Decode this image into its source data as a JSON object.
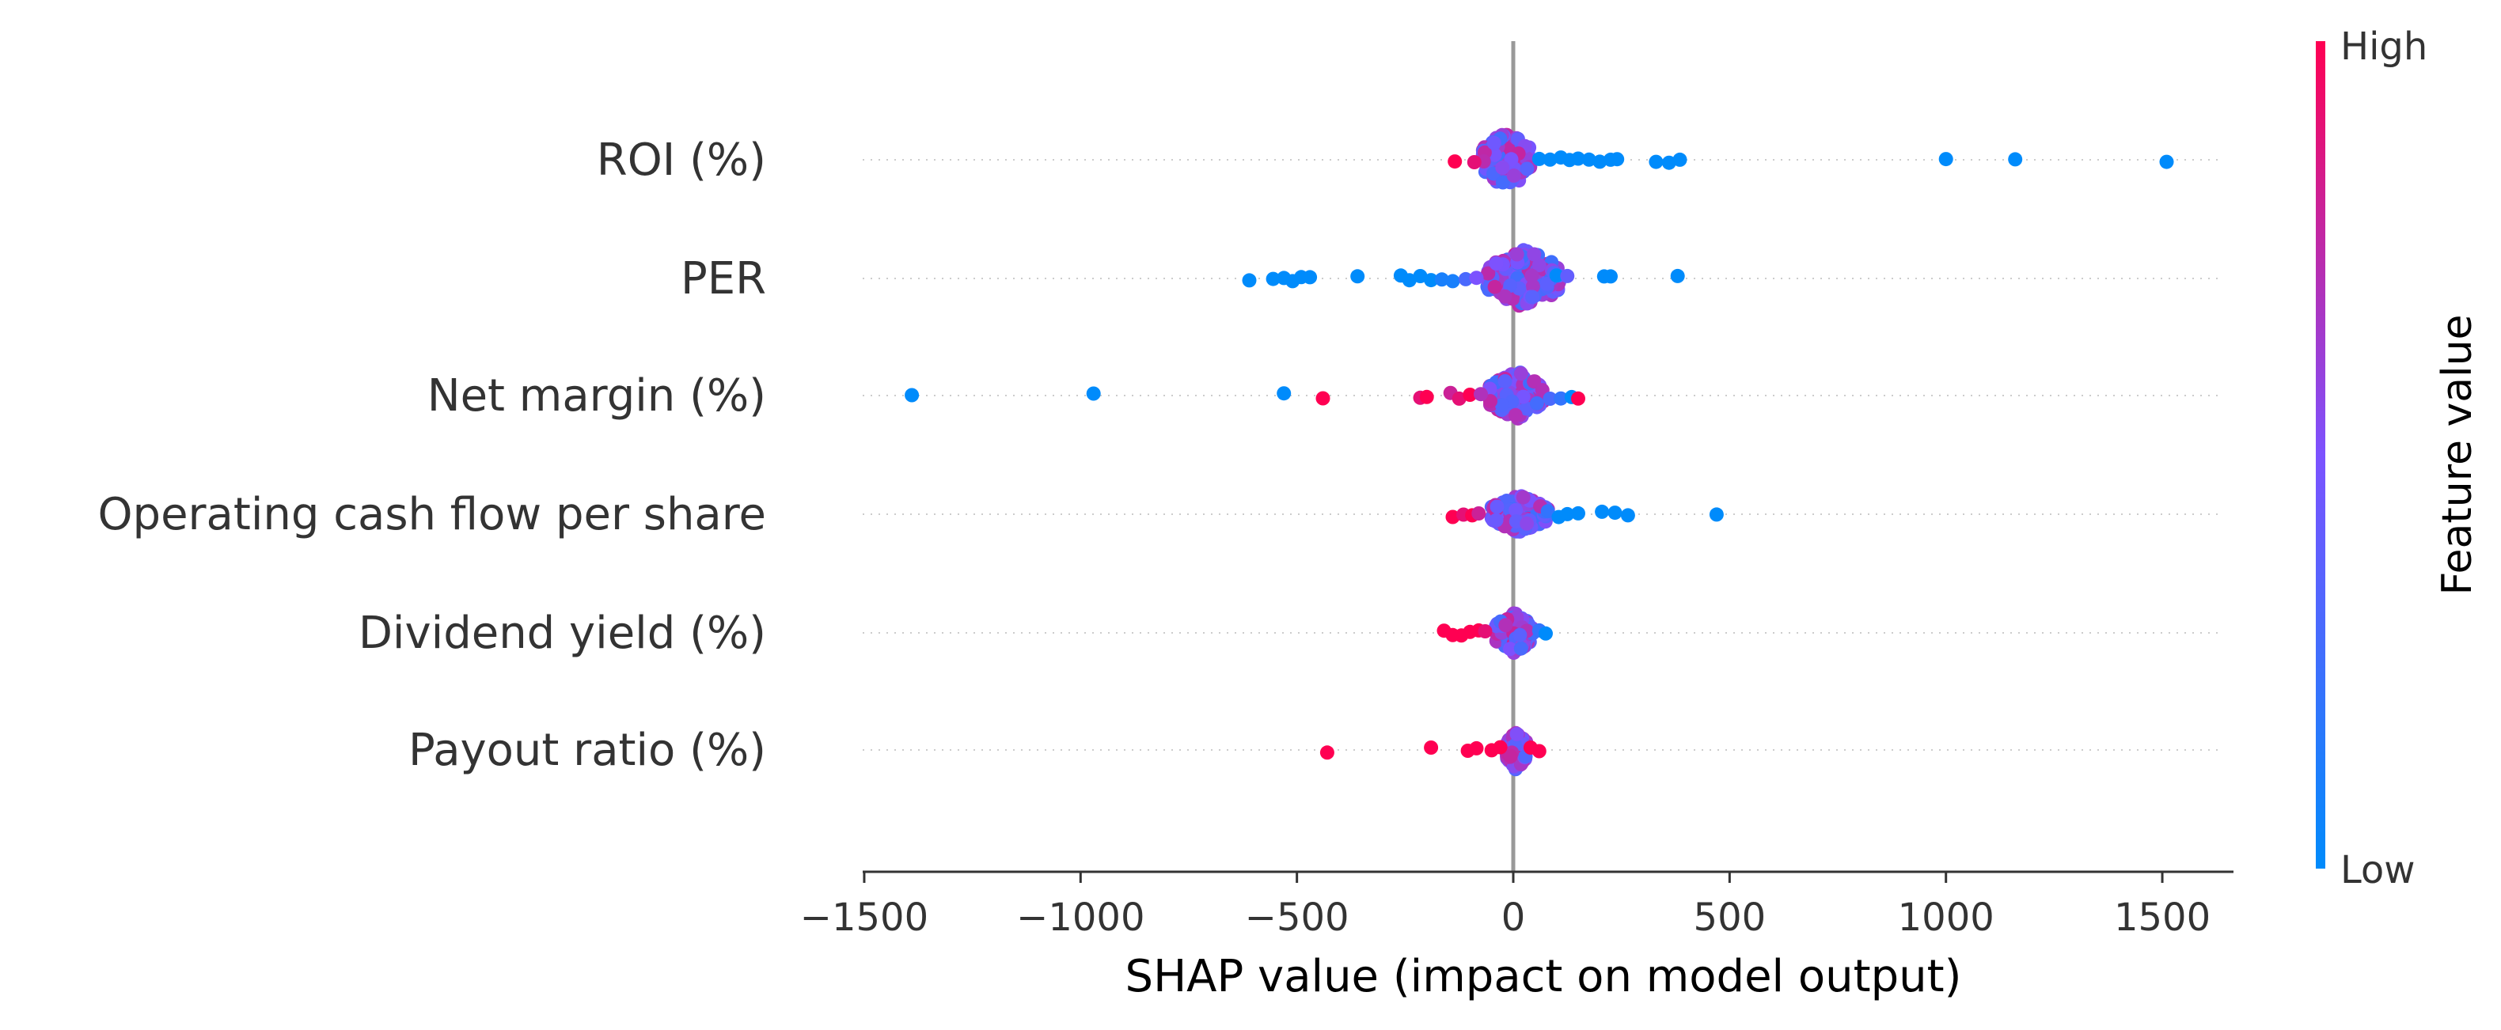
{
  "chart_data": {
    "type": "scatter",
    "subtype": "shap-beeswarm",
    "xlabel": "SHAP value (impact on model output)",
    "xlim": [
      -1600,
      1650
    ],
    "x_ticks": [
      -1500,
      -1000,
      -500,
      0,
      500,
      1000,
      1500
    ],
    "x_tick_labels": [
      "−1500",
      "−1000",
      "−500",
      "0",
      "500",
      "1000",
      "1500"
    ],
    "colorbar": {
      "label": "Feature value",
      "high_label": "High",
      "low_label": "Low",
      "high_color": "#ff0052",
      "low_color": "#008bfb"
    },
    "features": [
      {
        "name": "ROI (%)",
        "outliers": [
          {
            "x": -135,
            "v": 1
          },
          {
            "x": -90,
            "v": 0.9
          },
          {
            "x": 60,
            "v": 0
          },
          {
            "x": 85,
            "v": 0
          },
          {
            "x": 110,
            "v": 0
          },
          {
            "x": 130,
            "v": 0
          },
          {
            "x": 150,
            "v": 0
          },
          {
            "x": 175,
            "v": 0
          },
          {
            "x": 200,
            "v": 0
          },
          {
            "x": 225,
            "v": 0
          },
          {
            "x": 240,
            "v": 0
          },
          {
            "x": 330,
            "v": 0
          },
          {
            "x": 360,
            "v": 0
          },
          {
            "x": 385,
            "v": 0
          },
          {
            "x": 1000,
            "v": 0
          },
          {
            "x": 1160,
            "v": 0
          },
          {
            "x": 1510,
            "v": 0
          }
        ]
      },
      {
        "name": "PER",
        "outliers": [
          {
            "x": -610,
            "v": 0
          },
          {
            "x": -555,
            "v": 0
          },
          {
            "x": -530,
            "v": 0
          },
          {
            "x": -510,
            "v": 0
          },
          {
            "x": -490,
            "v": 0
          },
          {
            "x": -470,
            "v": 0
          },
          {
            "x": -360,
            "v": 0
          },
          {
            "x": -260,
            "v": 0
          },
          {
            "x": -240,
            "v": 0
          },
          {
            "x": -215,
            "v": 0
          },
          {
            "x": -190,
            "v": 0
          },
          {
            "x": -165,
            "v": 0.1
          },
          {
            "x": -140,
            "v": 0.1
          },
          {
            "x": -110,
            "v": 0.3
          },
          {
            "x": -85,
            "v": 0.5
          },
          {
            "x": 100,
            "v": 0
          },
          {
            "x": 125,
            "v": 0.4
          },
          {
            "x": 210,
            "v": 0
          },
          {
            "x": 225,
            "v": 0
          },
          {
            "x": 380,
            "v": 0
          }
        ]
      },
      {
        "name": "Net margin (%)",
        "outliers": [
          {
            "x": -1390,
            "v": 0
          },
          {
            "x": -970,
            "v": 0
          },
          {
            "x": -530,
            "v": 0
          },
          {
            "x": -440,
            "v": 1
          },
          {
            "x": -215,
            "v": 0.9
          },
          {
            "x": -200,
            "v": 1
          },
          {
            "x": -145,
            "v": 0.8
          },
          {
            "x": -125,
            "v": 0.9
          },
          {
            "x": -100,
            "v": 1
          },
          {
            "x": -75,
            "v": 0.7
          },
          {
            "x": 85,
            "v": 0.3
          },
          {
            "x": 110,
            "v": 0.2
          },
          {
            "x": 135,
            "v": 0
          },
          {
            "x": 150,
            "v": 1
          }
        ]
      },
      {
        "name": "Operating cash flow per share",
        "outliers": [
          {
            "x": -140,
            "v": 1
          },
          {
            "x": -115,
            "v": 0.9
          },
          {
            "x": -95,
            "v": 1
          },
          {
            "x": -80,
            "v": 0.8
          },
          {
            "x": 80,
            "v": 0.2
          },
          {
            "x": 105,
            "v": 0
          },
          {
            "x": 125,
            "v": 0
          },
          {
            "x": 150,
            "v": 0
          },
          {
            "x": 205,
            "v": 0
          },
          {
            "x": 235,
            "v": 0
          },
          {
            "x": 265,
            "v": 0
          },
          {
            "x": 470,
            "v": 0
          }
        ]
      },
      {
        "name": "Dividend yield (%)",
        "outliers": [
          {
            "x": -160,
            "v": 1
          },
          {
            "x": -140,
            "v": 1
          },
          {
            "x": -120,
            "v": 1
          },
          {
            "x": -100,
            "v": 1
          },
          {
            "x": -80,
            "v": 1
          },
          {
            "x": -65,
            "v": 0.9
          },
          {
            "x": 60,
            "v": 0.2
          },
          {
            "x": 75,
            "v": 0
          }
        ]
      },
      {
        "name": "Payout ratio (%)",
        "outliers": [
          {
            "x": -430,
            "v": 1
          },
          {
            "x": -190,
            "v": 1
          },
          {
            "x": -105,
            "v": 1
          },
          {
            "x": -85,
            "v": 1
          },
          {
            "x": -50,
            "v": 1
          },
          {
            "x": -30,
            "v": 1
          },
          {
            "x": 40,
            "v": 1
          },
          {
            "x": 60,
            "v": 1
          }
        ]
      }
    ]
  }
}
